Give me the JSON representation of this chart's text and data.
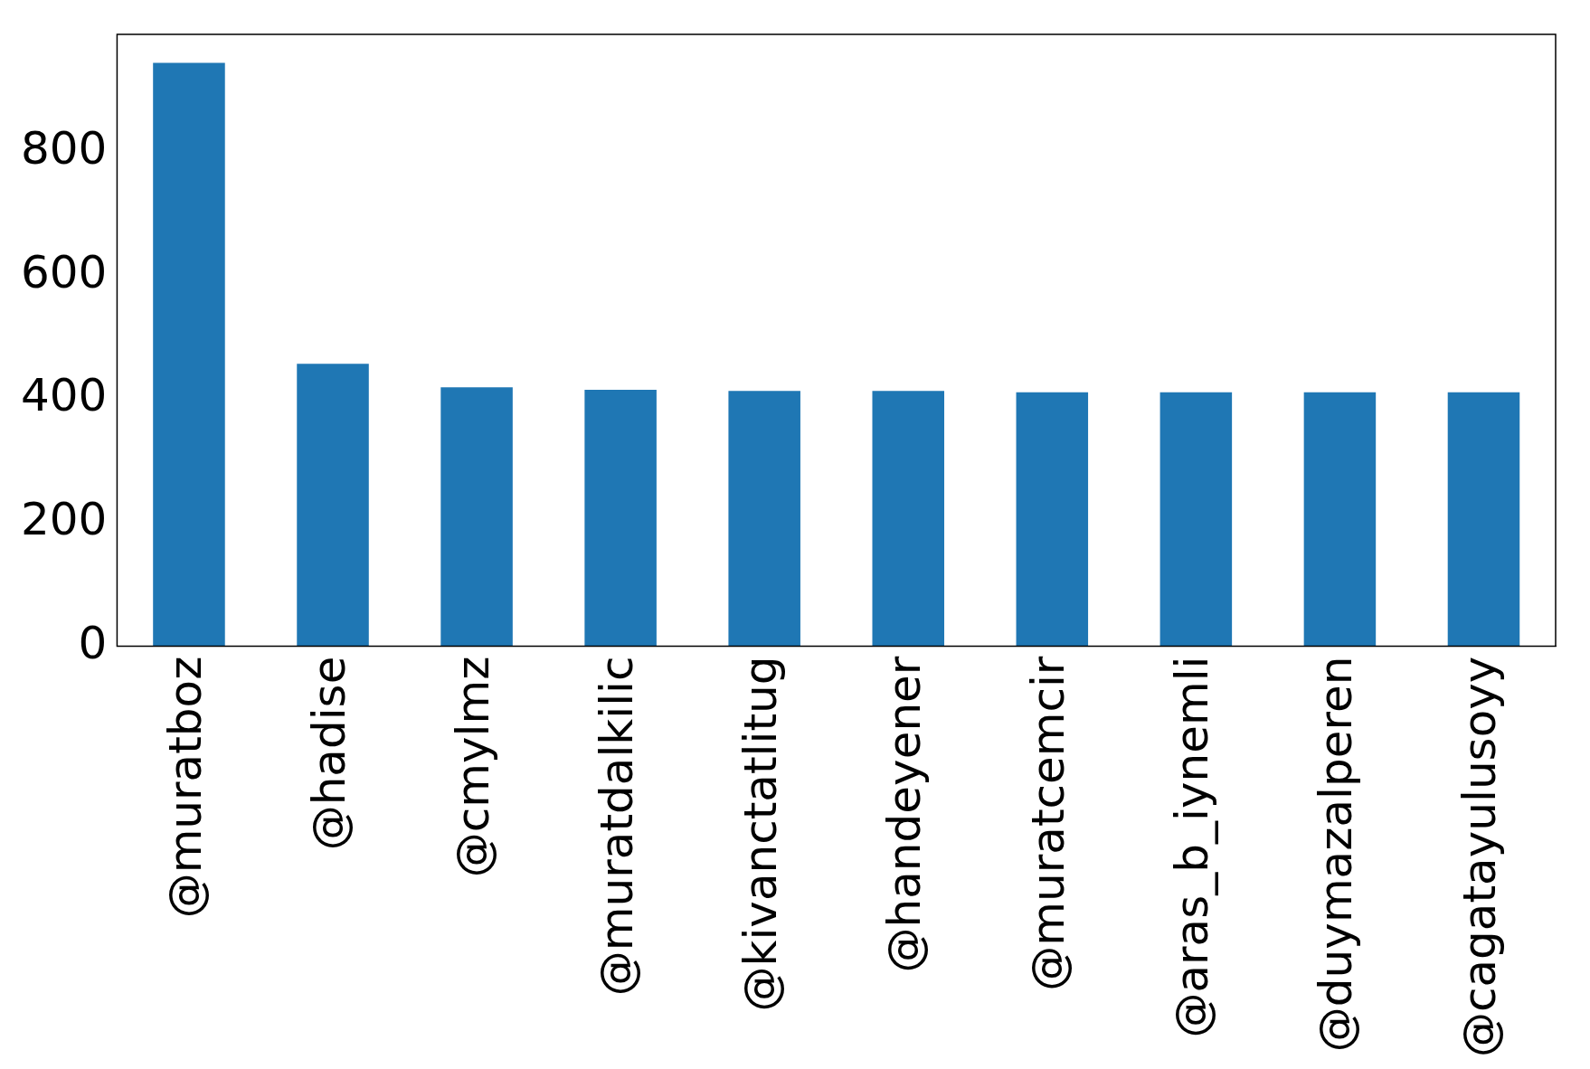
{
  "chart_data": {
    "type": "bar",
    "categories": [
      "@muratboz",
      "@hadise",
      "@cmylmz",
      "@muratdalkilic",
      "@kivanctatlitug",
      "@handeyener",
      "@muratcemcir",
      "@aras_b_iynemli",
      "@duymazalperen",
      "@cagatayulusoyy"
    ],
    "values": [
      944,
      457,
      419,
      415,
      413,
      413,
      411,
      411,
      411,
      411
    ],
    "color": "#1f77b4",
    "ylim": [
      0,
      990
    ],
    "yticks": [
      0,
      200,
      400,
      600,
      800
    ],
    "grid": false,
    "legend": false
  }
}
